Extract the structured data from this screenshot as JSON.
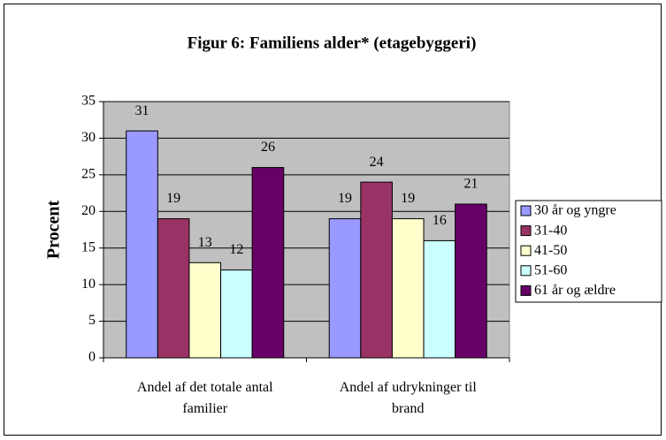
{
  "chart_data": {
    "type": "bar",
    "title": "Figur 6: Familiens alder* (etagebyggeri)",
    "y_label": "Procent",
    "categories": [
      "Andel af det totale antal familier",
      "Andel af udrykninger til brand"
    ],
    "series": [
      {
        "name": "30 år og yngre",
        "color": "#9999ff",
        "values": [
          31,
          19
        ]
      },
      {
        "name": "31-40",
        "color": "#993366",
        "values": [
          19,
          24
        ]
      },
      {
        "name": "41-50",
        "color": "#ffffcc",
        "values": [
          13,
          19
        ]
      },
      {
        "name": "51-60",
        "color": "#ccffff",
        "values": [
          12,
          16
        ]
      },
      {
        "name": "61 år og ældre",
        "color": "#660066",
        "values": [
          26,
          21
        ]
      }
    ],
    "ylim": [
      0,
      35
    ],
    "yticks": [
      0,
      5,
      10,
      15,
      20,
      25,
      30,
      35
    ],
    "grid": true,
    "legend": "right"
  }
}
